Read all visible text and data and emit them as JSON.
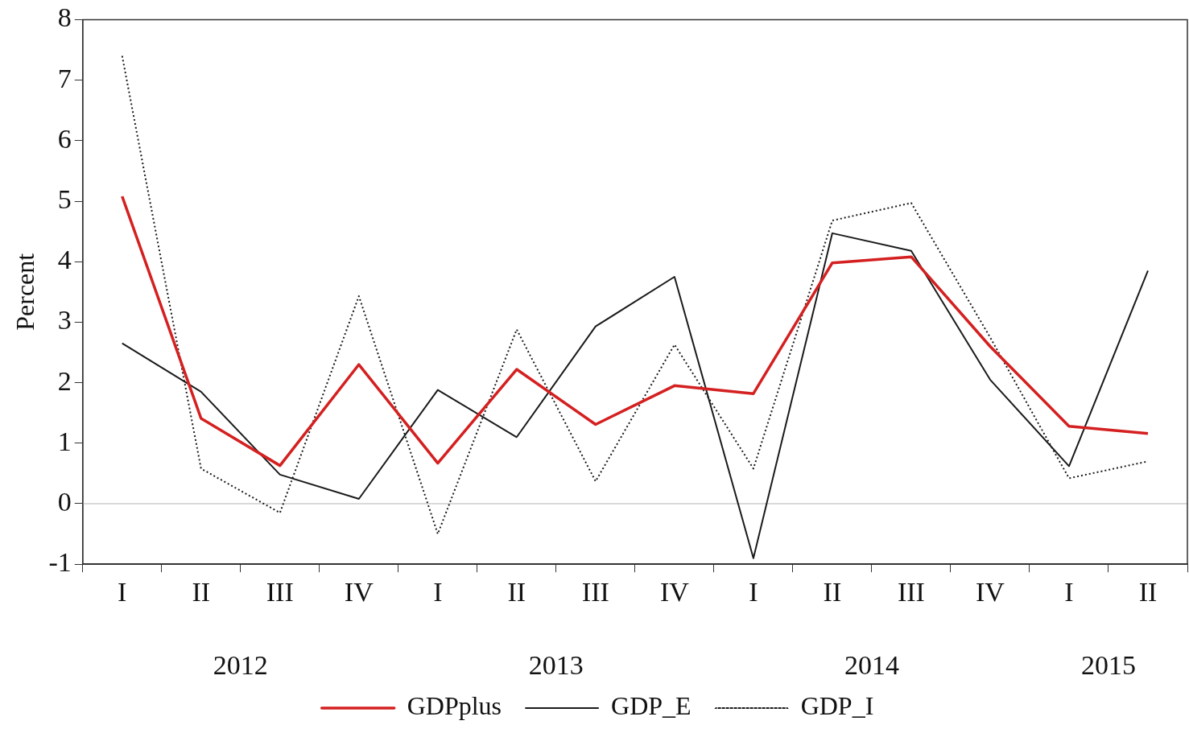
{
  "chart_data": {
    "type": "line",
    "ylabel": "Percent",
    "categories": [
      "I",
      "II",
      "III",
      "IV",
      "I",
      "II",
      "III",
      "IV",
      "I",
      "II",
      "III",
      "IV",
      "I",
      "II"
    ],
    "annotations": [
      "2012",
      "2013",
      "2014",
      "2015"
    ],
    "series": [
      {
        "name": "GDPplus",
        "color": "#d42020",
        "values": [
          5.08,
          1.41,
          0.63,
          2.3,
          0.67,
          2.22,
          1.31,
          1.95,
          1.82,
          3.98,
          4.08,
          2.6,
          1.28,
          1.16
        ]
      },
      {
        "name": "GDP_E",
        "color": "#1a1a1a",
        "values": [
          2.65,
          1.85,
          0.48,
          0.08,
          1.88,
          1.1,
          2.93,
          3.75,
          -0.9,
          4.47,
          4.18,
          2.05,
          0.62,
          3.85
        ]
      },
      {
        "name": "GDP_I",
        "color": "#1a1a1a",
        "line_style": "dotted",
        "values": [
          7.4,
          0.58,
          -0.15,
          3.43,
          -0.5,
          2.88,
          0.37,
          2.63,
          0.58,
          4.68,
          4.97,
          2.75,
          0.42,
          0.7
        ]
      }
    ],
    "ylim": [
      -1,
      8
    ],
    "yticks": [
      -1,
      0,
      1,
      2,
      3,
      4,
      5,
      6,
      7,
      8
    ],
    "ref_lines": [
      {
        "axis": "y",
        "value": 0,
        "color": "#cccccc"
      }
    ],
    "grid": false,
    "legend": "bottom",
    "marker": "none"
  }
}
